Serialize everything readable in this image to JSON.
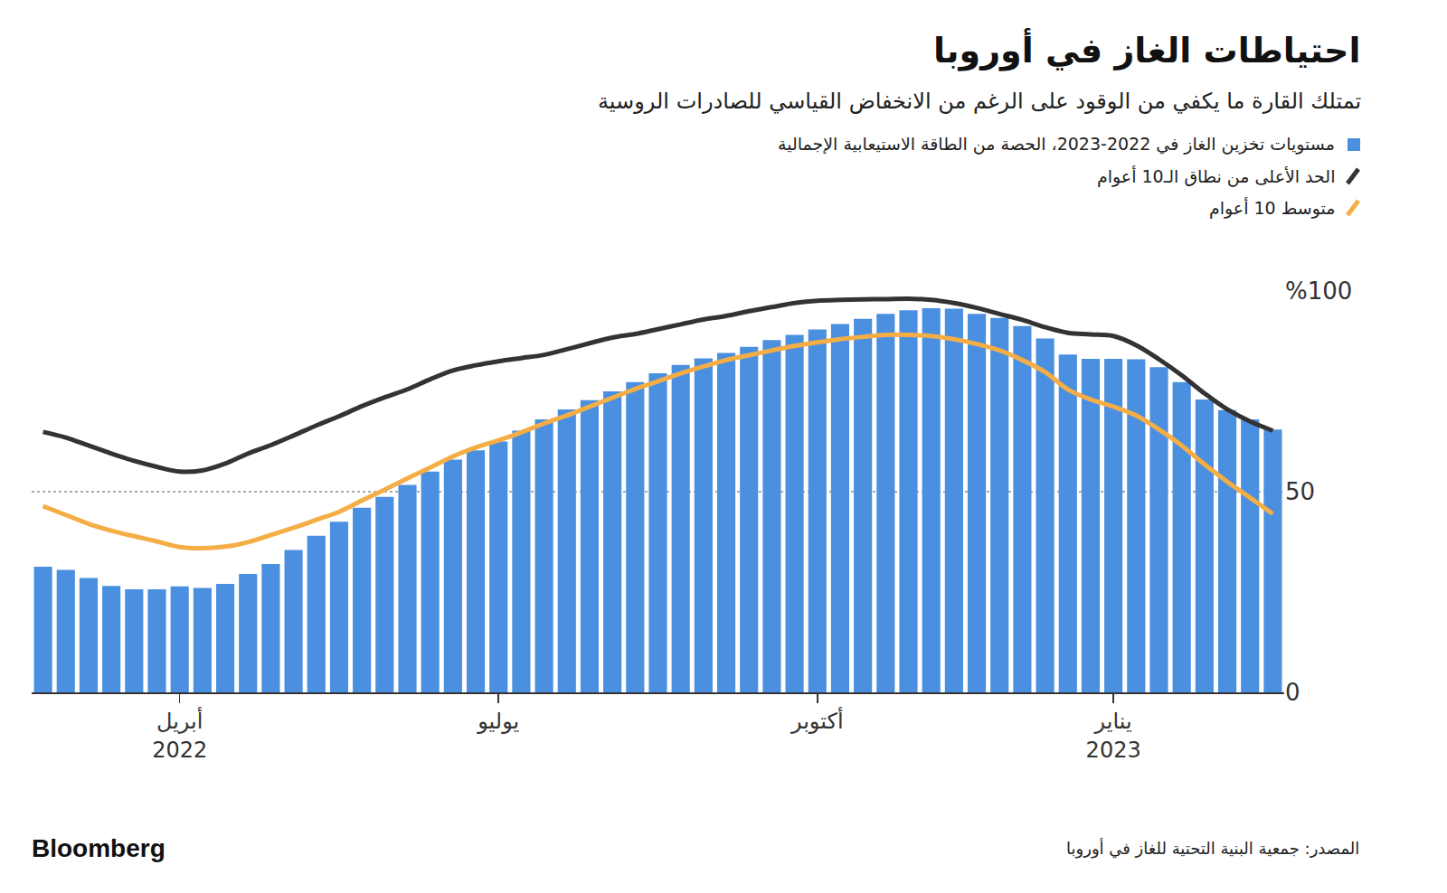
{
  "chart_data": {
    "type": "bar",
    "title": "احتياطات الغاز في أوروبا",
    "subtitle": "تمتلك القارة ما يكفي من الوقود على الرغم من الانخفاض القياسي للصادرات الروسية",
    "source": "المصدر: جمعية البنية التحتية للغاز في أوروبا",
    "branding": "Bloomberg",
    "categories": [
      null,
      null,
      null,
      null,
      null,
      null,
      "أبريل\n2022",
      null,
      null,
      null,
      null,
      null,
      null,
      null,
      null,
      null,
      null,
      null,
      null,
      null,
      "يوليو",
      null,
      null,
      null,
      null,
      null,
      null,
      null,
      null,
      null,
      null,
      null,
      null,
      null,
      "أكتوبر",
      null,
      null,
      null,
      null,
      null,
      null,
      null,
      null,
      null,
      null,
      null,
      null,
      "يناير\n2023",
      null,
      null,
      null,
      null,
      null,
      null,
      null
    ],
    "series": [
      {
        "name": "مستويات تخزين الغاز في 2022-2023، الحصة من الطاقة الاستيعابية الإجمالية",
        "type": "bar",
        "color": "#4a8fe0",
        "marker": "square",
        "values": [
          31.3,
          30.5,
          28.5,
          26.5,
          25.7,
          25.7,
          26.4,
          26,
          27,
          29.5,
          32,
          35.5,
          39,
          42.5,
          46,
          48.7,
          51.7,
          55,
          58,
          60.3,
          62.5,
          65.2,
          68,
          70.5,
          72.8,
          75,
          77.3,
          79.5,
          81.6,
          83.2,
          84.6,
          86.1,
          87.8,
          89.1,
          90.4,
          91.8,
          93.1,
          94.3,
          95.2,
          95.7,
          95.6,
          94.3,
          93.3,
          91.3,
          88.2,
          84.2,
          83.1,
          83.1,
          83,
          81,
          77.3,
          73,
          70.3,
          68,
          65.5
        ]
      },
      {
        "name": "الحد الأعلى من نطاق الـ10 أعوام",
        "type": "line",
        "color": "#333333",
        "line_style": "solid",
        "values": [
          64.9,
          63.5,
          61.5,
          59.5,
          57.7,
          56.2,
          55,
          55.3,
          57,
          59.5,
          61.6,
          64,
          66.5,
          68.8,
          71.3,
          73.5,
          75.5,
          78,
          80.2,
          81.5,
          82.5,
          83.3,
          84.1,
          85.5,
          87,
          88.4,
          89.3,
          90.5,
          91.7,
          92.9,
          93.8,
          95,
          96,
          97,
          97.6,
          97.8,
          97.9,
          98,
          98.1,
          97.8,
          97,
          95.8,
          94.3,
          92.8,
          91,
          89.6,
          89.2,
          88.8,
          86.5,
          83,
          79,
          74.5,
          70.5,
          67.5,
          65.2
        ]
      },
      {
        "name": "متوسط 10 أعوام",
        "type": "line",
        "color": "#f5ad45",
        "line_style": "solid",
        "values": [
          46.4,
          44.2,
          42,
          40.3,
          38.9,
          37.6,
          36.2,
          35.9,
          36.3,
          37.4,
          39.2,
          41,
          43,
          45,
          47.8,
          50.5,
          53.3,
          56,
          58.8,
          61,
          62.8,
          64.8,
          67,
          69,
          71.2,
          73.4,
          75.6,
          77.5,
          79.5,
          81.2,
          82.8,
          84,
          85.2,
          86.3,
          87.2,
          88,
          88.6,
          89.1,
          89.1,
          88.8,
          88,
          86.8,
          85.2,
          82.8,
          79.8,
          75.5,
          73,
          71.2,
          69,
          65.5,
          61.5,
          56.8,
          52.5,
          48.5,
          44.5
        ]
      }
    ],
    "ylim": [
      0,
      100
    ],
    "yticks": [
      0,
      50,
      {
        "value": 100,
        "label": "%100"
      }
    ],
    "grid": true
  }
}
